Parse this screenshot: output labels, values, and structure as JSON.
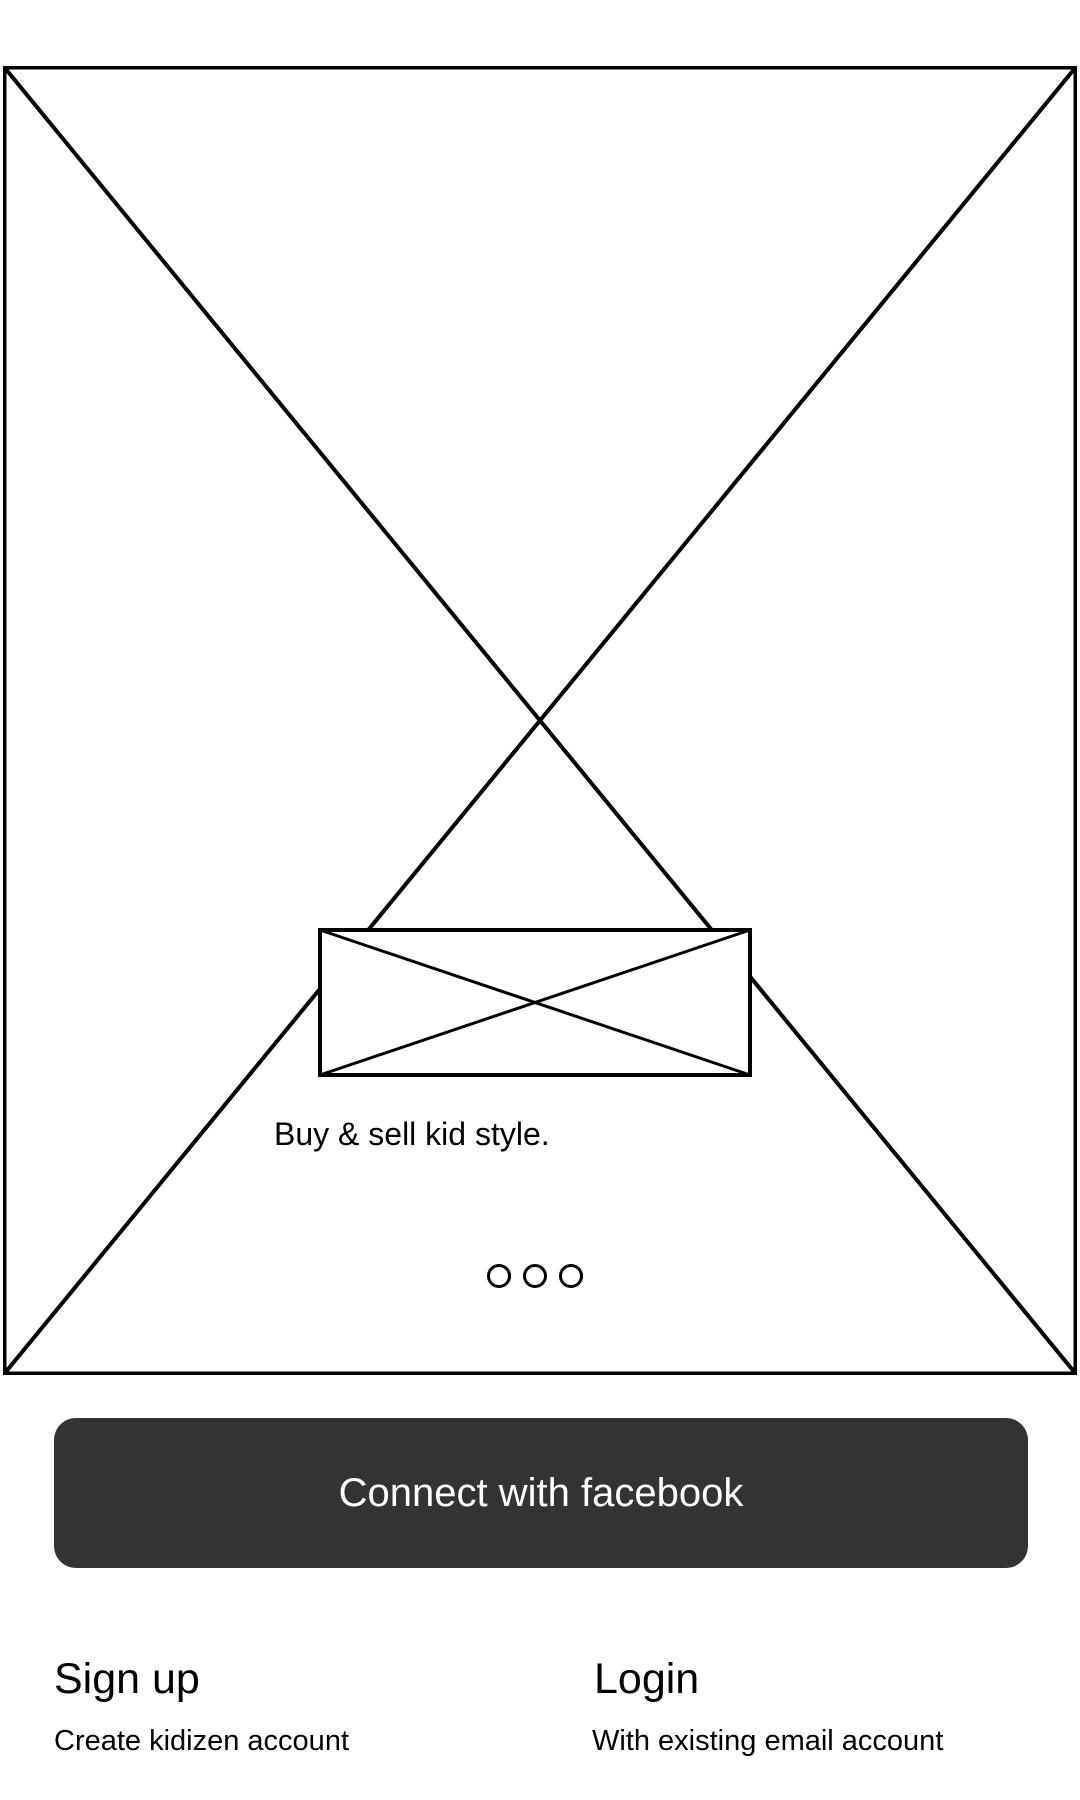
{
  "hero": {
    "tagline": "Buy & sell kid style.",
    "pager": {
      "count": 3,
      "active_index": null
    }
  },
  "facebook_button": {
    "label": "Connect with facebook",
    "color": "#333333",
    "text_color": "#ffffff"
  },
  "signup": {
    "title": "Sign up",
    "subtitle": "Create kidizen account"
  },
  "login": {
    "title": "Login",
    "subtitle": "With existing email account"
  },
  "icons": {
    "hero": "image-placeholder-icon",
    "logo": "logo-placeholder-icon"
  }
}
